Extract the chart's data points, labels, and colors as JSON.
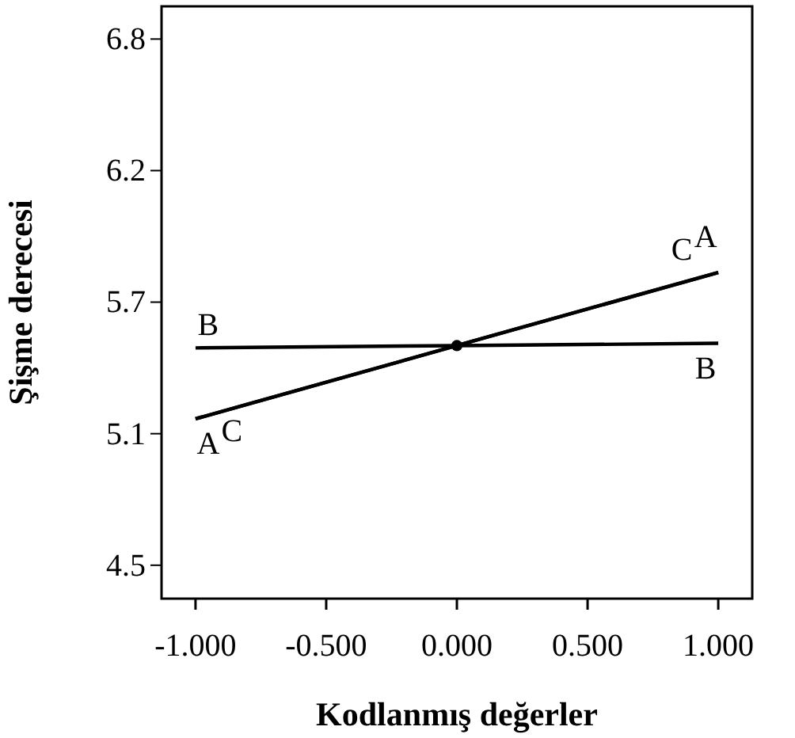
{
  "chart_data": {
    "type": "line",
    "xlabel": "Kodlanmış değerler",
    "ylabel": "Şişme derecesi",
    "xlim": [
      -1.13,
      1.13
    ],
    "ylim": [
      4.354,
      6.943
    ],
    "xticks": [
      {
        "value": -1,
        "label": "-1.000"
      },
      {
        "value": -0.5,
        "label": "-0.500"
      },
      {
        "value": 0,
        "label": "0.000"
      },
      {
        "value": 0.5,
        "label": "0.500"
      },
      {
        "value": 1,
        "label": "1.000"
      }
    ],
    "yticks": [
      4.5,
      {
        "value": 5.075,
        "label": "5.1"
      },
      {
        "value": 5.65,
        "label": "5.7"
      },
      {
        "value": 6.225,
        "label": "6.2"
      },
      6.8
    ],
    "grid": false,
    "line_style": "solid",
    "series": [
      {
        "name": "A",
        "color": "#000000",
        "x": [
          -1,
          0,
          1
        ],
        "values": [
          5.14,
          5.46,
          5.78
        ]
      },
      {
        "name": "B",
        "color": "#000000",
        "x": [
          -1,
          0,
          1
        ],
        "values": [
          5.45,
          5.46,
          5.47
        ]
      },
      {
        "name": "C",
        "color": "#000000",
        "x": [
          -1,
          0,
          1
        ],
        "values": [
          5.14,
          5.46,
          5.78
        ]
      },
      {
        "type": "scatter",
        "marker": "circle",
        "color": "#000000",
        "x": [
          0
        ],
        "values": [
          5.46
        ]
      }
    ]
  }
}
